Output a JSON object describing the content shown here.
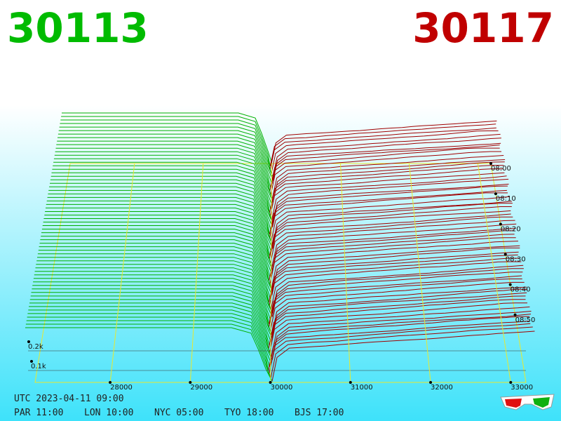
{
  "bid": "30113",
  "ask": "30117",
  "price_axis": {
    "ticks": [
      28000,
      29000,
      30000,
      31000,
      32000,
      33000
    ]
  },
  "time_axis": {
    "ticks": [
      "08:00",
      "08:10",
      "08:20",
      "08:30",
      "08:40",
      "08:50"
    ]
  },
  "depth_axis": {
    "ticks": [
      "0.2k",
      "0.1k"
    ]
  },
  "clock": {
    "utc": "UTC 2023-04-11 09:00",
    "zones": [
      "PAR 11:00",
      "LON 10:00",
      "NYC 05:00",
      "TYO 18:00",
      "BJS 17:00"
    ]
  }
}
